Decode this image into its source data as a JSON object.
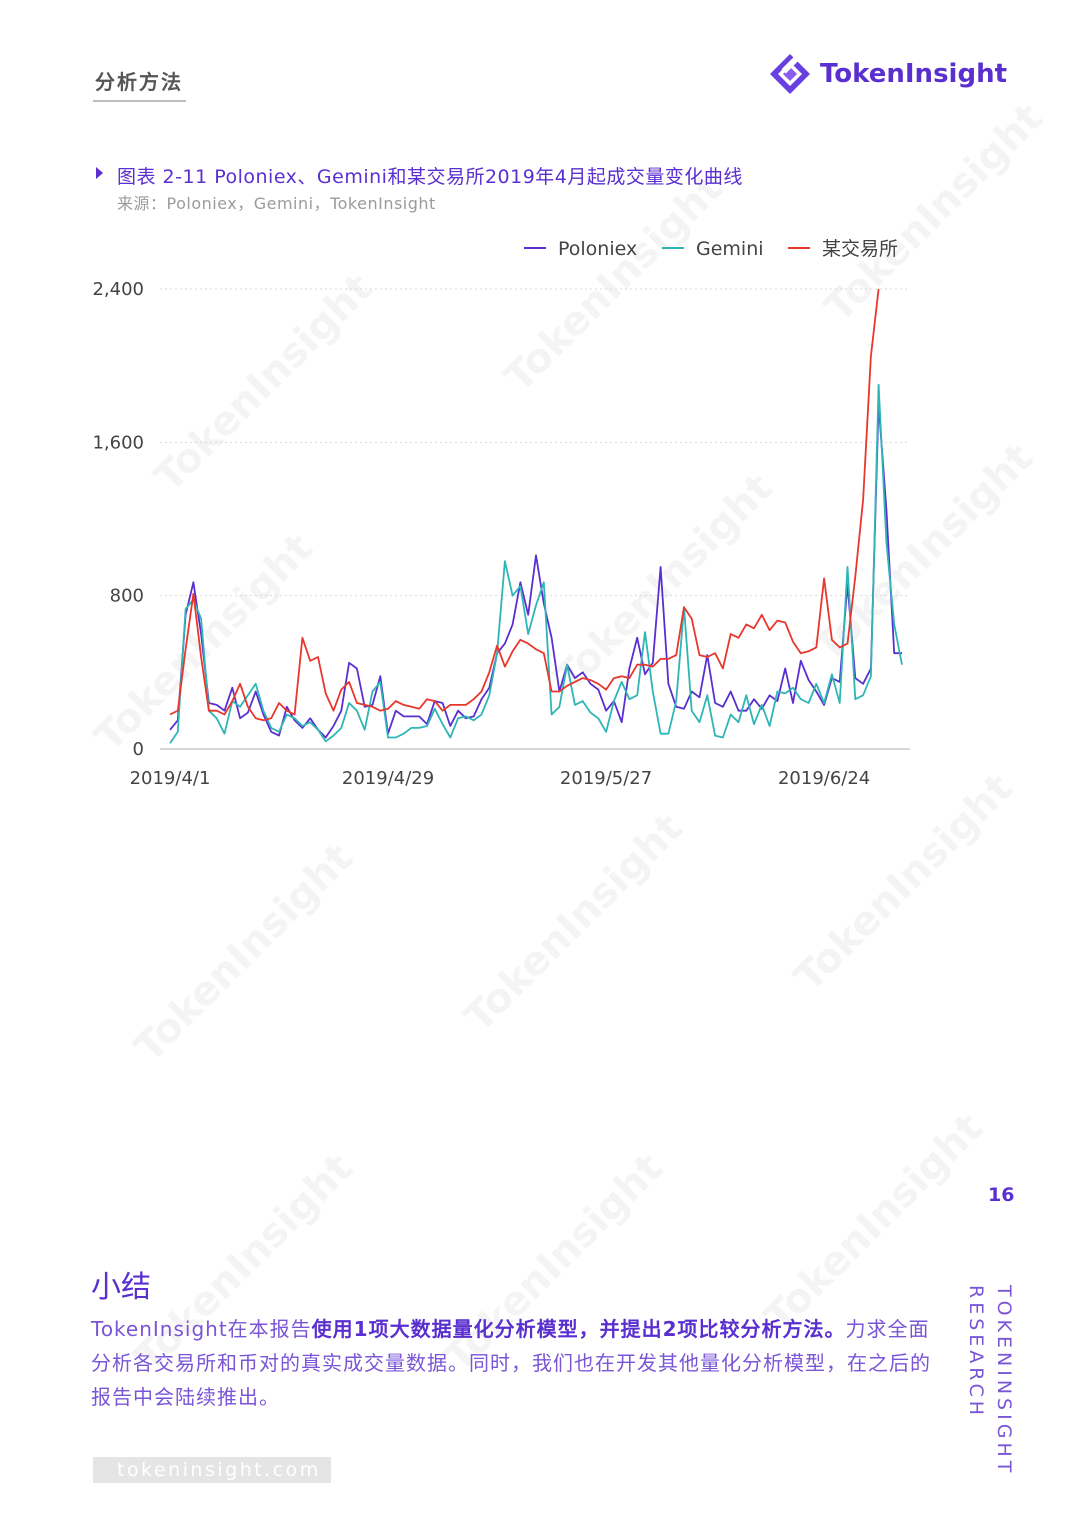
{
  "header": {
    "section_title": "分析方法",
    "logo_text": "TokenInsight"
  },
  "figure": {
    "title": "图表 2-11 Poloniex、Gemini和某交易所2019年4月起成交量变化曲线",
    "source": "来源：Poloniex，Gemini，TokenInsight"
  },
  "chart_data": {
    "type": "line",
    "x_tick_labels": [
      "2019/4/1",
      "2019/4/29",
      "2019/5/27",
      "2019/6/24"
    ],
    "x_tick_indices": [
      0,
      28,
      56,
      84
    ],
    "ylim": [
      0,
      2400
    ],
    "y_ticks": [
      0,
      800,
      1600,
      2400
    ],
    "y_tick_labels": [
      "0",
      "800",
      "1,600",
      "2,400"
    ],
    "grid": "horizontal dotted",
    "legend_position": "top-right",
    "series": [
      {
        "name": "Poloniex",
        "color": "#5a2fd0",
        "values": [
          100,
          150,
          700,
          870,
          600,
          240,
          230,
          200,
          320,
          160,
          190,
          300,
          180,
          90,
          70,
          220,
          150,
          110,
          160,
          100,
          60,
          120,
          200,
          450,
          420,
          220,
          230,
          380,
          80,
          200,
          170,
          170,
          170,
          130,
          250,
          240,
          120,
          200,
          160,
          170,
          260,
          320,
          500,
          550,
          650,
          870,
          700,
          1010,
          760,
          580,
          300,
          440,
          370,
          400,
          340,
          310,
          200,
          250,
          140,
          420,
          580,
          390,
          450,
          950,
          340,
          220,
          210,
          300,
          270,
          490,
          240,
          220,
          300,
          200,
          200,
          260,
          210,
          280,
          250,
          420,
          240,
          460,
          360,
          300,
          230,
          370,
          350,
          860,
          370,
          340,
          420,
          1800,
          1250,
          500,
          500
        ]
      },
      {
        "name": "Gemini",
        "color": "#2fb5b5",
        "values": [
          30,
          90,
          730,
          780,
          680,
          200,
          160,
          80,
          250,
          220,
          280,
          340,
          200,
          110,
          90,
          180,
          160,
          120,
          140,
          100,
          40,
          70,
          110,
          240,
          200,
          100,
          300,
          350,
          60,
          60,
          80,
          110,
          110,
          120,
          210,
          130,
          60,
          160,
          170,
          150,
          180,
          280,
          500,
          980,
          800,
          850,
          600,
          750,
          870,
          180,
          220,
          440,
          230,
          250,
          190,
          160,
          90,
          250,
          350,
          260,
          280,
          610,
          300,
          80,
          80,
          250,
          740,
          200,
          140,
          280,
          70,
          60,
          180,
          140,
          280,
          130,
          230,
          120,
          300,
          290,
          320,
          260,
          240,
          340,
          240,
          390,
          240,
          950,
          260,
          280,
          380,
          1900,
          1080,
          650,
          440
        ]
      },
      {
        "name": "某交易所",
        "color": "#e8372c",
        "values": [
          180,
          200,
          520,
          810,
          480,
          200,
          200,
          180,
          250,
          340,
          220,
          160,
          150,
          160,
          240,
          200,
          180,
          580,
          460,
          480,
          290,
          200,
          310,
          350,
          240,
          230,
          220,
          200,
          210,
          250,
          230,
          220,
          210,
          260,
          250,
          200,
          230,
          230,
          230,
          260,
          300,
          400,
          540,
          430,
          510,
          570,
          550,
          520,
          500,
          300,
          300,
          330,
          350,
          370,
          360,
          340,
          310,
          370,
          380,
          370,
          440,
          440,
          430,
          470,
          470,
          490,
          740,
          680,
          490,
          480,
          500,
          420,
          600,
          580,
          650,
          630,
          700,
          620,
          670,
          660,
          560,
          500,
          510,
          530,
          890,
          570,
          530,
          550,
          900,
          1300,
          2050,
          2400
        ]
      }
    ]
  },
  "page_number": "16",
  "summary": {
    "title": "小结",
    "p1": "TokenInsight在本报告",
    "p1_bold": "使用1项大数据量化分析模型，并提出2项比较分析方法。",
    "p1_rest": "力求全面分析各交易所和币对的真实成交量数据。同时，我们也在开发其他量化分析模型，在之后的报告中会陆续推出。"
  },
  "side": {
    "line1": "TOKENINSIGHT",
    "line2": "RESEARCH"
  },
  "footer": {
    "url": "tokeninsight.com"
  },
  "watermark": "TokenInsight"
}
